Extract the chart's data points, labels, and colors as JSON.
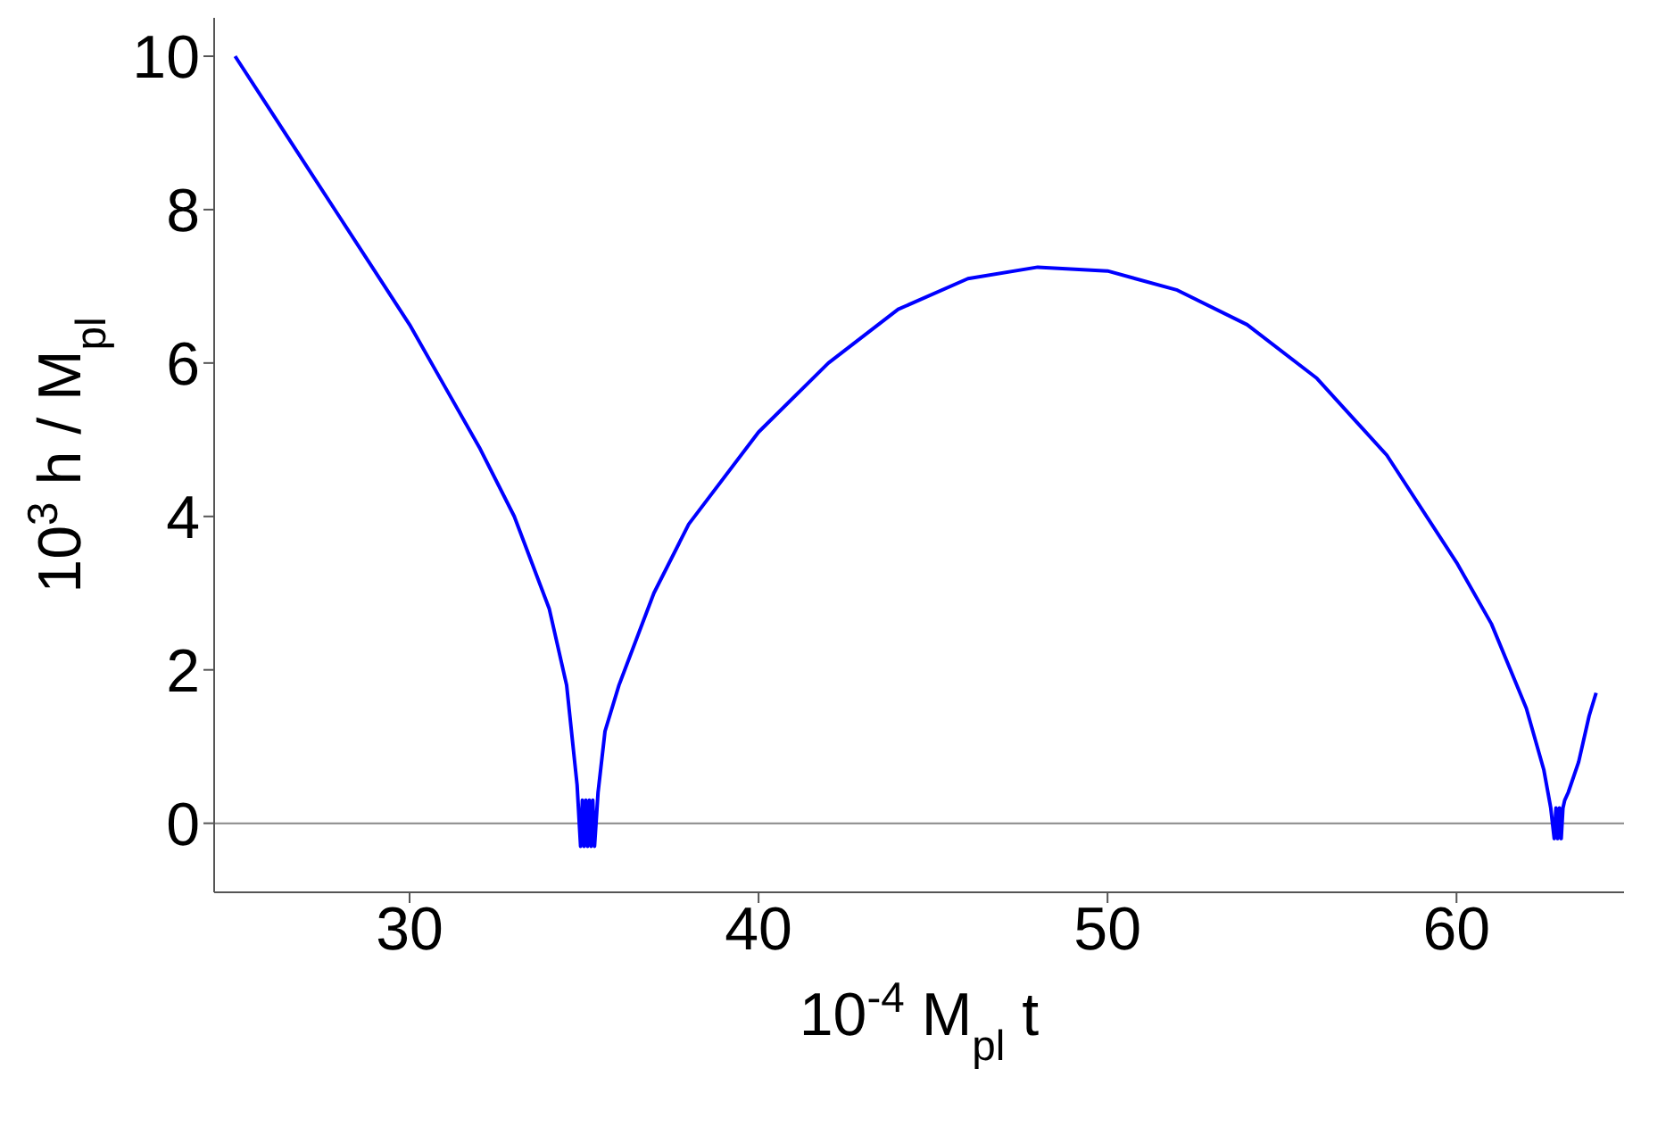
{
  "chart_data": {
    "type": "line",
    "xlabel": "10$^{-4}$ M$_{pl}$ t",
    "ylabel": "10$^{3}$ h / M$_{pl}$",
    "xlim": [
      24.4,
      64.8
    ],
    "xticks": [
      30,
      40,
      50,
      60
    ],
    "ylim": [
      -0.9,
      10.5
    ],
    "yticks": [
      0,
      2,
      4,
      6,
      8,
      10
    ],
    "grid": false,
    "legend": false,
    "marker": "none",
    "line_style": "solid",
    "ref_lines": [
      {
        "axis": "y",
        "value": 0,
        "color": "#888888"
      }
    ],
    "series": [
      {
        "color": "#0000ff",
        "x": [
          25,
          26,
          27,
          28,
          29,
          30,
          31,
          32,
          33,
          34,
          34.5,
          34.8,
          34.9,
          34.95,
          35.0,
          35.05,
          35.1,
          35.15,
          35.2,
          35.25,
          35.3,
          35.4,
          35.6,
          36,
          37,
          38,
          40,
          42,
          44,
          46,
          48,
          50,
          52,
          54,
          56,
          58,
          60,
          61,
          62,
          62.5,
          62.7,
          62.8,
          62.85,
          62.9,
          62.95,
          63.0,
          63.05,
          63.1,
          63.2,
          63.5,
          63.8,
          64.0
        ],
        "values": [
          10,
          9.3,
          8.6,
          7.9,
          7.2,
          6.5,
          5.7,
          4.9,
          4.0,
          2.8,
          1.8,
          0.5,
          -0.3,
          0.3,
          -0.3,
          0.3,
          -0.3,
          0.3,
          -0.3,
          0.3,
          -0.3,
          0.4,
          1.2,
          1.8,
          3.0,
          3.9,
          5.1,
          6.0,
          6.7,
          7.1,
          7.25,
          7.2,
          6.95,
          6.5,
          5.8,
          4.8,
          3.4,
          2.6,
          1.5,
          0.7,
          0.2,
          -0.2,
          0.2,
          -0.2,
          0.2,
          -0.2,
          0.2,
          0.3,
          0.4,
          0.8,
          1.4,
          1.7
        ]
      }
    ]
  }
}
